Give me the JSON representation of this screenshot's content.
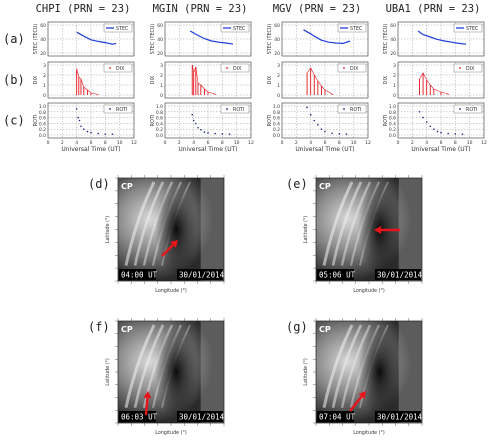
{
  "station_titles": [
    "CHPI (PRN = 23)",
    "MGIN (PRN = 23)",
    "MGV (PRN = 23)",
    "UBA1 (PRN = 23)"
  ],
  "row_labels": [
    "(a)",
    "(b)",
    "(c)"
  ],
  "ylabels": [
    "STEC (TECU)",
    "DIX",
    "ROTI"
  ],
  "legend_labels": [
    "STEC",
    "DIX",
    "ROTI"
  ],
  "xlabel": "Universal Time (UT)",
  "x_ticks": [
    "0",
    "2",
    "4",
    "6",
    "8",
    "10",
    "12"
  ],
  "stec_ticks": [
    "60",
    "40",
    "20"
  ],
  "dix_ticks": [
    "3",
    "2",
    "1",
    "0"
  ],
  "roti_ticks": [
    "1.0",
    "0.8",
    "0.6",
    "0.4",
    "0.2",
    "0.0"
  ],
  "colors": {
    "stec": "#1f3fdc",
    "dix": "#e8141c",
    "roti": "#1a237e",
    "arrow": "#e8141c"
  },
  "chart_data": [
    {
      "type": "line",
      "station": "CHPI",
      "xlim": [
        0,
        12
      ],
      "stec": {
        "x": [
          4,
          5,
          6,
          7,
          8,
          9,
          9.5
        ],
        "y": [
          52,
          42,
          33,
          29,
          26,
          22,
          24
        ],
        "ylim": [
          0,
          70
        ]
      },
      "dix": {
        "x": [
          4,
          4.3,
          4.6,
          5,
          5.5,
          6,
          7
        ],
        "y": [
          2.6,
          1.8,
          1.6,
          0.8,
          0.5,
          0.2,
          0.05
        ],
        "ylim": [
          0,
          3
        ]
      },
      "roti": {
        "x": [
          4,
          4.2,
          4.4,
          4.6,
          5,
          5.5,
          6,
          7,
          8,
          9
        ],
        "y": [
          0.9,
          0.6,
          0.5,
          0.3,
          0.2,
          0.12,
          0.08,
          0.05,
          0.03,
          0.03
        ],
        "ylim": [
          0,
          1
        ]
      }
    },
    {
      "type": "line",
      "station": "MGIN",
      "xlim": [
        0,
        12
      ],
      "stec": {
        "x": [
          3.5,
          4.5,
          5.5,
          6.5,
          7.5,
          8.5,
          9.5
        ],
        "y": [
          55,
          45,
          36,
          30,
          27,
          25,
          22
        ],
        "ylim": [
          0,
          70
        ]
      },
      "dix": {
        "x": [
          3.8,
          4,
          4.3,
          4.6,
          5,
          5.5,
          6,
          7
        ],
        "y": [
          3.0,
          2.2,
          2.8,
          1.2,
          1.0,
          0.6,
          0.3,
          0.1
        ],
        "ylim": [
          0,
          3
        ]
      },
      "roti": {
        "x": [
          3.8,
          4,
          4.3,
          4.6,
          5,
          5.5,
          6,
          7,
          8,
          9
        ],
        "y": [
          0.7,
          0.5,
          0.4,
          0.25,
          0.18,
          0.1,
          0.07,
          0.05,
          0.04,
          0.03
        ],
        "ylim": [
          0,
          1
        ]
      }
    },
    {
      "type": "line",
      "station": "MGV",
      "xlim": [
        0,
        12
      ],
      "stec": {
        "x": [
          3,
          4,
          4.5,
          5.5,
          6.5,
          7.5,
          8.5,
          9.5
        ],
        "y": [
          58,
          48,
          42,
          32,
          27,
          25,
          24,
          30
        ],
        "ylim": [
          0,
          70
        ]
      },
      "dix": {
        "x": [
          3.5,
          4,
          4.5,
          5,
          5.5,
          6,
          7
        ],
        "y": [
          2.2,
          2.7,
          2.0,
          1.4,
          0.9,
          0.5,
          0.1
        ],
        "ylim": [
          0,
          3
        ]
      },
      "roti": {
        "x": [
          3.5,
          4,
          4.5,
          5,
          5.5,
          6,
          7,
          8,
          9
        ],
        "y": [
          0.95,
          0.7,
          0.5,
          0.35,
          0.2,
          0.12,
          0.06,
          0.04,
          0.03
        ],
        "ylim": [
          0,
          1
        ]
      }
    },
    {
      "type": "line",
      "station": "UBA1",
      "xlim": [
        0,
        12
      ],
      "stec": {
        "x": [
          2.8,
          3.5,
          4.5,
          5.5,
          6.5,
          7.5,
          8.5,
          9.5
        ],
        "y": [
          55,
          46,
          40,
          34,
          30,
          27,
          24,
          22
        ],
        "ylim": [
          0,
          70
        ]
      },
      "dix": {
        "x": [
          3,
          3.5,
          4,
          4.5,
          5,
          6,
          7
        ],
        "y": [
          1.6,
          2.2,
          1.5,
          1.0,
          0.6,
          0.3,
          0.1
        ],
        "ylim": [
          0,
          3
        ]
      },
      "roti": {
        "x": [
          3,
          3.5,
          4,
          4.5,
          5,
          5.5,
          6,
          7,
          8,
          9
        ],
        "y": [
          0.8,
          0.6,
          0.45,
          0.3,
          0.2,
          0.12,
          0.08,
          0.05,
          0.04,
          0.03
        ],
        "ylim": [
          0,
          1
        ]
      }
    }
  ],
  "images": [
    {
      "label": "(d)",
      "time": "04:00 UT",
      "date": "30/01/2014",
      "arrow": "diagonal"
    },
    {
      "label": "(e)",
      "time": "05:06 UT",
      "date": "30/01/2014",
      "arrow": "horizontal"
    },
    {
      "label": "(f)",
      "time": "06:03 UT",
      "date": "30/01/2014",
      "arrow": "vertical"
    },
    {
      "label": "(g)",
      "time": "07:04 UT",
      "date": "30/01/2014",
      "arrow": "diagonal-up"
    }
  ],
  "image_text": {
    "corner": "CP",
    "ylabel": "Latitude (°)",
    "xlabel": "Longitude (°)"
  }
}
